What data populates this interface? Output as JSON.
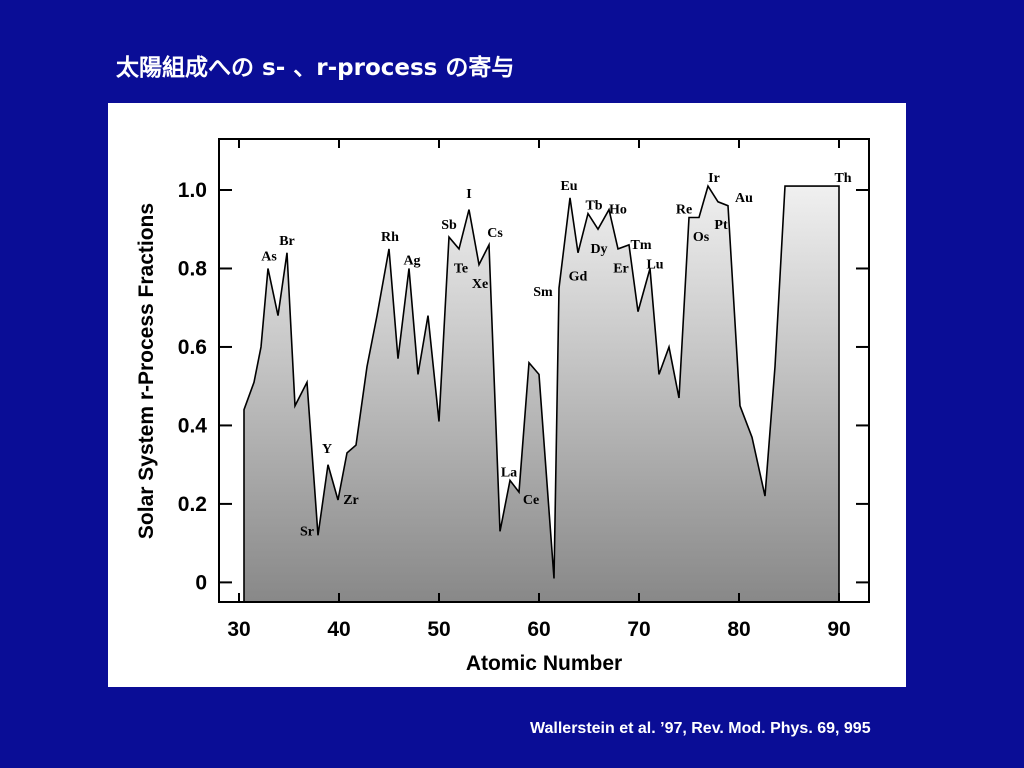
{
  "slide": {
    "title": "太陽組成への s- 、r-process の寄与",
    "citation": "Wallerstein et al. ’97, Rev. Mod. Phys. 69, 995"
  },
  "chart_data": {
    "type": "area",
    "title": "",
    "xlabel": "Atomic Number",
    "ylabel": "Solar System r-Process Fractions",
    "xlim": [
      28,
      93
    ],
    "ylim": [
      -0.05,
      1.13
    ],
    "xticks": [
      30,
      40,
      50,
      60,
      70,
      80,
      90
    ],
    "yticks": [
      0,
      0.2,
      0.4,
      0.6,
      0.8,
      1.0
    ],
    "ytick_labels": [
      "0",
      "0.2",
      "0.4",
      "0.6",
      "0.8",
      "1.0"
    ],
    "grid": false,
    "colors": {
      "fill_top": "#f0f0f0",
      "fill_bottom": "#888888",
      "line": "#000000"
    },
    "series": [
      {
        "x": [
          30.5,
          30.5,
          31.5,
          32.2,
          32.9,
          33.9,
          34.8,
          35.6,
          36.8,
          37.9,
          38.9,
          39.9,
          40.8,
          41.7,
          42.8,
          43.8,
          45.0,
          45.9,
          47.0,
          47.9,
          48.9,
          50.0,
          51.0,
          52.0,
          53.0,
          54.0,
          55.0,
          56.1,
          57.1,
          58.0,
          59.0,
          60.0,
          61.5,
          62.0,
          63.1,
          63.9,
          64.9,
          65.9,
          67.0,
          67.9,
          69.0,
          69.9,
          71.1,
          72.0,
          73.0,
          74.0,
          75.0,
          76.0,
          76.9,
          77.9,
          78.9,
          80.1,
          81.3,
          82.6,
          83.6,
          84.6,
          90.0,
          90.0
        ],
        "y": [
          -0.05,
          0.44,
          0.51,
          0.6,
          0.8,
          0.68,
          0.84,
          0.45,
          0.51,
          0.12,
          0.3,
          0.21,
          0.33,
          0.35,
          0.55,
          0.68,
          0.85,
          0.57,
          0.8,
          0.53,
          0.68,
          0.41,
          0.88,
          0.85,
          0.95,
          0.81,
          0.86,
          0.13,
          0.26,
          0.23,
          0.56,
          0.53,
          0.01,
          0.75,
          0.98,
          0.84,
          0.94,
          0.9,
          0.95,
          0.85,
          0.86,
          0.69,
          0.8,
          0.53,
          0.6,
          0.47,
          0.93,
          0.93,
          1.01,
          0.97,
          0.96,
          0.45,
          0.37,
          0.22,
          0.55,
          1.01,
          1.01,
          -0.05
        ]
      }
    ],
    "annotations": [
      {
        "text": "As",
        "x": 33.0,
        "y": 0.82
      },
      {
        "text": "Br",
        "x": 34.8,
        "y": 0.86
      },
      {
        "text": "Sr",
        "x": 36.8,
        "y": 0.12
      },
      {
        "text": "Y",
        "x": 38.8,
        "y": 0.33
      },
      {
        "text": "Zr",
        "x": 41.2,
        "y": 0.2
      },
      {
        "text": "Rh",
        "x": 45.1,
        "y": 0.87
      },
      {
        "text": "Ag",
        "x": 47.3,
        "y": 0.81
      },
      {
        "text": "Sb",
        "x": 51.0,
        "y": 0.9
      },
      {
        "text": "I",
        "x": 53.0,
        "y": 0.98
      },
      {
        "text": "Te",
        "x": 52.2,
        "y": 0.79
      },
      {
        "text": "Cs",
        "x": 55.6,
        "y": 0.88
      },
      {
        "text": "Xe",
        "x": 54.1,
        "y": 0.75
      },
      {
        "text": "La",
        "x": 57.0,
        "y": 0.27
      },
      {
        "text": "Ce",
        "x": 59.2,
        "y": 0.2
      },
      {
        "text": "Sm",
        "x": 60.4,
        "y": 0.73
      },
      {
        "text": "Eu",
        "x": 63.0,
        "y": 1.0
      },
      {
        "text": "Tb",
        "x": 65.5,
        "y": 0.95
      },
      {
        "text": "Ho",
        "x": 67.9,
        "y": 0.94
      },
      {
        "text": "Gd",
        "x": 63.9,
        "y": 0.77
      },
      {
        "text": "Dy",
        "x": 66.0,
        "y": 0.84
      },
      {
        "text": "Tm",
        "x": 70.2,
        "y": 0.85
      },
      {
        "text": "Er",
        "x": 68.2,
        "y": 0.79
      },
      {
        "text": "Lu",
        "x": 71.6,
        "y": 0.8
      },
      {
        "text": "Re",
        "x": 74.5,
        "y": 0.94
      },
      {
        "text": "Ir",
        "x": 77.5,
        "y": 1.02
      },
      {
        "text": "Au",
        "x": 80.5,
        "y": 0.97
      },
      {
        "text": "Pt",
        "x": 78.2,
        "y": 0.9
      },
      {
        "text": "Os",
        "x": 76.2,
        "y": 0.87
      },
      {
        "text": "Th",
        "x": 90.4,
        "y": 1.02
      }
    ]
  }
}
